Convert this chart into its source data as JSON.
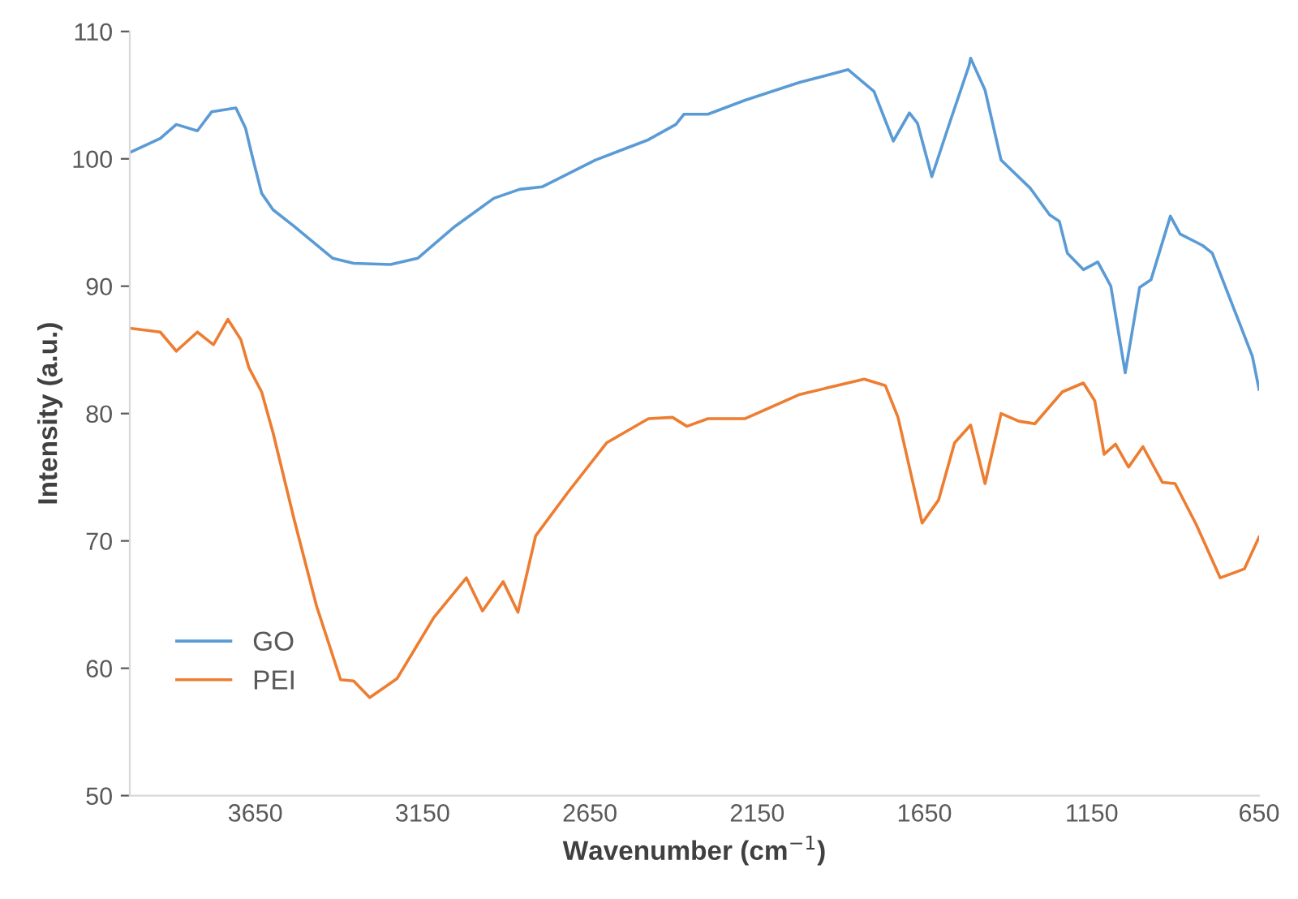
{
  "chart_data": {
    "type": "line",
    "xlabel": "Wavenumber (cm$^{−1}$)",
    "ylabel": "Intensity (a.u.)",
    "xlim": [
      4025,
      650
    ],
    "xticks": [
      3650,
      3150,
      2650,
      2150,
      1650,
      1150,
      650
    ],
    "ylim": [
      50,
      110
    ],
    "yticks": [
      50,
      60,
      70,
      80,
      90,
      100,
      110
    ],
    "grid": false,
    "legend": "bottom left",
    "marker": "none",
    "line_style": "solid",
    "series": [
      {
        "name": "GO",
        "color": "#5b9bd5",
        "x": [
          4025,
          3934,
          3886,
          3823,
          3780,
          3708,
          3679,
          3660,
          3631,
          3597,
          3534,
          3419,
          3356,
          3246,
          3164,
          3053,
          2937,
          2860,
          2793,
          2634,
          2475,
          2393,
          2369,
          2297,
          2186,
          2023,
          1878,
          1801,
          1743,
          1695,
          1671,
          1628,
          1575,
          1517,
          1512,
          1469,
          1421,
          1334,
          1276,
          1247,
          1223,
          1175,
          1132,
          1093,
          1050,
          1007,
          973,
          915,
          886,
          819,
          790,
          670,
          650
        ],
        "values": [
          100.5,
          101.6,
          102.7,
          102.2,
          103.7,
          104,
          102.4,
          100.3,
          97.3,
          96,
          94.7,
          92.2,
          91.8,
          91.7,
          92.2,
          94.7,
          96.9,
          97.6,
          97.8,
          99.9,
          101.5,
          102.7,
          103.5,
          103.5,
          104.6,
          106,
          107,
          105.3,
          101.4,
          103.6,
          102.8,
          98.6,
          102.8,
          107.3,
          107.9,
          105.4,
          99.9,
          97.7,
          95.6,
          95.1,
          92.6,
          91.3,
          91.9,
          90,
          83.2,
          89.9,
          90.5,
          95.5,
          94.1,
          93.2,
          92.6,
          84.5,
          81.9
        ]
      },
      {
        "name": "PEI",
        "color": "#ed7d31",
        "x": [
          4025,
          3934,
          3886,
          3823,
          3775,
          3732,
          3693,
          3669,
          3631,
          3597,
          3534,
          3467,
          3395,
          3356,
          3308,
          3226,
          3116,
          3019,
          2971,
          2909,
          2865,
          2812,
          2716,
          2600,
          2475,
          2403,
          2360,
          2297,
          2186,
          2023,
          1830,
          1767,
          1729,
          1657,
          1608,
          1560,
          1512,
          1469,
          1421,
          1368,
          1320,
          1238,
          1175,
          1141,
          1113,
          1079,
          1040,
          997,
          939,
          901,
          838,
          766,
          694,
          650
        ],
        "values": [
          86.7,
          86.4,
          84.9,
          86.4,
          85.4,
          87.4,
          85.8,
          83.6,
          81.7,
          78.5,
          71.7,
          64.9,
          59.1,
          59,
          57.7,
          59.2,
          64,
          67.1,
          64.5,
          66.8,
          64.4,
          70.4,
          73.8,
          77.7,
          79.6,
          79.7,
          79,
          79.6,
          79.6,
          81.5,
          82.7,
          82.2,
          79.7,
          71.4,
          73.2,
          77.7,
          79.1,
          74.5,
          80,
          79.4,
          79.2,
          81.7,
          82.4,
          81,
          76.8,
          77.6,
          75.8,
          77.4,
          74.6,
          74.5,
          71.3,
          67.1,
          67.8,
          70.3
        ]
      }
    ]
  }
}
